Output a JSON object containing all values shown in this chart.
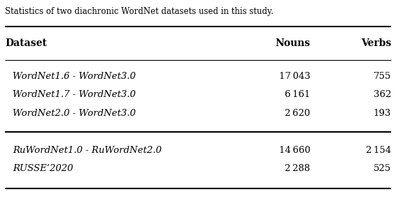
{
  "caption": "Statistics of two diachronic WordNet datasets used in this study.",
  "headers": [
    "Dataset",
    "Nouns",
    "Verbs"
  ],
  "rows": [
    [
      "WordNet1.6 - WordNet3.0",
      "17 043",
      "755"
    ],
    [
      "WordNet1.7 - WordNet3.0",
      "6 161",
      "362"
    ],
    [
      "WordNet2.0 - WordNet3.0",
      "2 620",
      "193"
    ],
    [
      "RuWordNet1.0 - RuWordNet2.0",
      "14 660",
      "2 154"
    ],
    [
      "RUSSE’2020",
      "2 288",
      "525"
    ]
  ],
  "group_separators": [
    3
  ],
  "bg_color": "#ffffff",
  "text_color": "#000000",
  "figsize": [
    5.66,
    2.98
  ],
  "dpi": 100
}
